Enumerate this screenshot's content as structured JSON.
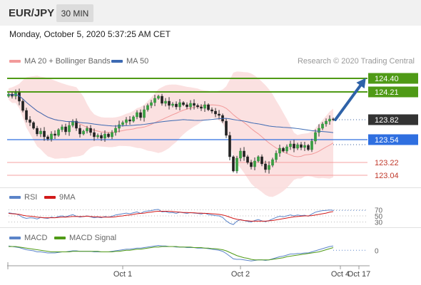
{
  "header": {
    "symbol": "EUR/JPY",
    "timeframe": "30 MIN",
    "datetime": "Monday, October 5, 2020 5:37:25 AM CET"
  },
  "legend": {
    "bollinger_label": "MA 20 + Bollinger Bands",
    "ma50_label": "MA 50",
    "research": "Research © 2020 Trading Central",
    "rsi_label": "RSI",
    "rsi_ma_label": "9MA",
    "macd_label": "MACD",
    "macd_signal_label": "MACD Signal"
  },
  "colors": {
    "bollinger": "#f29a9a",
    "ma50": "#3d6ab3",
    "resistance": "#4f9a16",
    "pivot": "#2f6fe0",
    "support": "#f4a0a0",
    "current": "#333333",
    "arrow": "#2e62a8",
    "rsi": "#5b84c9",
    "rsi_ma": "#d11a1a",
    "macd": "#5b84c9",
    "macd_signal": "#4f9a16"
  },
  "chart_data": {
    "type": "candlestick",
    "price_range": [
      122.95,
      124.5
    ],
    "levels": [
      {
        "value": 124.4,
        "label": "124.40",
        "kind": "resistance"
      },
      {
        "value": 124.21,
        "label": "124.21",
        "kind": "resistance"
      },
      {
        "value": 123.82,
        "label": "123.82",
        "kind": "current"
      },
      {
        "value": 123.54,
        "label": "123.54",
        "kind": "pivot"
      },
      {
        "value": 123.22,
        "label": "123.22",
        "kind": "support"
      },
      {
        "value": 123.04,
        "label": "123.04",
        "kind": "support"
      }
    ],
    "x_ticks": [
      "Oct 1",
      "Oct 2",
      "Oct 4",
      "Oct 17"
    ],
    "closes": [
      124.18,
      124.15,
      124.2,
      124.08,
      123.95,
      123.82,
      123.78,
      123.7,
      123.62,
      123.66,
      123.58,
      123.55,
      123.62,
      123.6,
      123.68,
      123.72,
      123.65,
      123.74,
      123.8,
      123.7,
      123.62,
      123.66,
      123.7,
      123.64,
      123.58,
      123.6,
      123.56,
      123.62,
      123.58,
      123.64,
      123.7,
      123.75,
      123.78,
      123.82,
      123.8,
      123.86,
      123.92,
      123.85,
      123.96,
      124.02,
      124.06,
      124.12,
      124.15,
      124.05,
      124.08,
      124.02,
      124.04,
      124.0,
      124.06,
      124.03,
      124.0,
      124.05,
      124.02,
      124.0,
      123.98,
      124.03,
      123.96,
      123.94,
      123.9,
      123.88,
      123.8,
      123.6,
      123.3,
      123.1,
      123.28,
      123.38,
      123.3,
      123.22,
      123.16,
      123.24,
      123.3,
      123.2,
      123.12,
      123.18,
      123.26,
      123.35,
      123.42,
      123.38,
      123.44,
      123.48,
      123.42,
      123.47,
      123.43,
      123.46,
      123.4,
      123.52,
      123.64,
      123.7,
      123.76,
      123.8,
      123.83,
      123.82
    ],
    "rsi_levels": [
      70,
      50,
      30
    ],
    "macd_zero": 0,
    "rsi": [
      60,
      58,
      57,
      52,
      45,
      42,
      44,
      43,
      40,
      45,
      43,
      42,
      46,
      44,
      48,
      50,
      47,
      51,
      54,
      49,
      46,
      48,
      50,
      47,
      44,
      46,
      44,
      48,
      46,
      49,
      53,
      55,
      57,
      59,
      57,
      60,
      63,
      58,
      64,
      66,
      67,
      70,
      71,
      63,
      64,
      60,
      61,
      58,
      62,
      60,
      58,
      61,
      59,
      58,
      56,
      59,
      54,
      53,
      51,
      50,
      45,
      34,
      26,
      22,
      33,
      38,
      35,
      32,
      30,
      35,
      38,
      34,
      31,
      35,
      40,
      45,
      49,
      47,
      50,
      53,
      50,
      53,
      51,
      52,
      49,
      56,
      62,
      65,
      67,
      68,
      69,
      68
    ],
    "rsi_ma": [
      58,
      57,
      56,
      55,
      52,
      50,
      49,
      48,
      46,
      45,
      44,
      44,
      44,
      44,
      45,
      46,
      46,
      47,
      48,
      48,
      48,
      48,
      49,
      48,
      47,
      47,
      46,
      46,
      46,
      46,
      47,
      49,
      50,
      52,
      53,
      55,
      57,
      58,
      59,
      61,
      62,
      64,
      65,
      65,
      65,
      65,
      64,
      63,
      62,
      61,
      61,
      60,
      60,
      59,
      59,
      58,
      58,
      57,
      56,
      55,
      53,
      50,
      46,
      42,
      39,
      37,
      35,
      34,
      33,
      33,
      33,
      33,
      33,
      34,
      35,
      37,
      39,
      41,
      43,
      45,
      47,
      48,
      49,
      50,
      50,
      51,
      53,
      55,
      57,
      59,
      62,
      64
    ],
    "macd": [
      0.08,
      0.07,
      0.06,
      0.05,
      0.03,
      0.01,
      0.0,
      -0.01,
      -0.03,
      -0.03,
      -0.04,
      -0.05,
      -0.05,
      -0.05,
      -0.04,
      -0.03,
      -0.03,
      -0.02,
      -0.01,
      -0.01,
      -0.02,
      -0.02,
      -0.02,
      -0.02,
      -0.03,
      -0.03,
      -0.03,
      -0.03,
      -0.03,
      -0.02,
      -0.01,
      0.0,
      0.01,
      0.02,
      0.02,
      0.03,
      0.04,
      0.04,
      0.05,
      0.06,
      0.07,
      0.08,
      0.09,
      0.08,
      0.08,
      0.07,
      0.07,
      0.06,
      0.06,
      0.06,
      0.05,
      0.05,
      0.05,
      0.04,
      0.04,
      0.04,
      0.03,
      0.02,
      0.01,
      0.0,
      -0.02,
      -0.06,
      -0.11,
      -0.16,
      -0.17,
      -0.17,
      -0.18,
      -0.19,
      -0.2,
      -0.19,
      -0.18,
      -0.18,
      -0.19,
      -0.18,
      -0.16,
      -0.14,
      -0.12,
      -0.11,
      -0.09,
      -0.07,
      -0.07,
      -0.06,
      -0.06,
      -0.05,
      -0.05,
      -0.03,
      -0.01,
      0.01,
      0.03,
      0.05,
      0.07,
      0.08
    ],
    "macd_signal": [
      0.07,
      0.07,
      0.07,
      0.06,
      0.05,
      0.04,
      0.03,
      0.02,
      0.01,
      0.0,
      -0.01,
      -0.02,
      -0.03,
      -0.03,
      -0.03,
      -0.03,
      -0.03,
      -0.03,
      -0.02,
      -0.02,
      -0.02,
      -0.02,
      -0.02,
      -0.02,
      -0.02,
      -0.02,
      -0.03,
      -0.03,
      -0.03,
      -0.03,
      -0.02,
      -0.02,
      -0.01,
      0.0,
      0.0,
      0.01,
      0.02,
      0.02,
      0.03,
      0.04,
      0.05,
      0.06,
      0.06,
      0.07,
      0.07,
      0.07,
      0.07,
      0.07,
      0.06,
      0.06,
      0.06,
      0.06,
      0.05,
      0.05,
      0.05,
      0.04,
      0.04,
      0.03,
      0.03,
      0.02,
      0.01,
      -0.01,
      -0.04,
      -0.07,
      -0.1,
      -0.12,
      -0.14,
      -0.15,
      -0.17,
      -0.18,
      -0.18,
      -0.18,
      -0.18,
      -0.18,
      -0.17,
      -0.16,
      -0.15,
      -0.14,
      -0.12,
      -0.11,
      -0.1,
      -0.09,
      -0.08,
      -0.07,
      -0.06,
      -0.05,
      -0.04,
      -0.03,
      -0.01,
      0.01,
      0.03,
      0.05
    ],
    "macd_range": [
      -0.25,
      0.15
    ]
  }
}
